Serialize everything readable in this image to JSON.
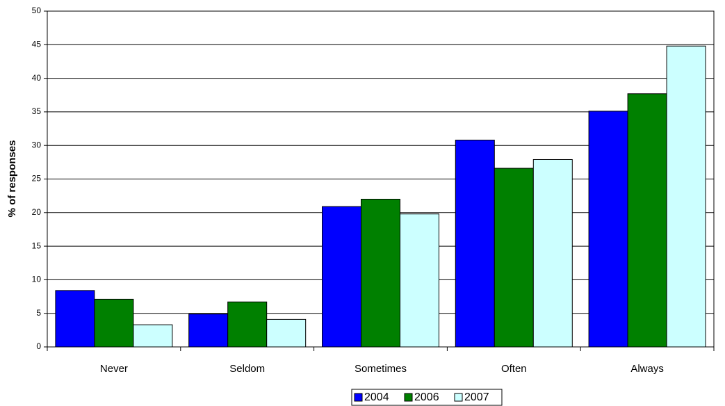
{
  "chart_data": {
    "type": "bar",
    "y_label": "% of responses",
    "categories": [
      "Never",
      "Seldom",
      "Sometimes",
      "Often",
      "Always"
    ],
    "series": [
      {
        "name": "2004",
        "color": "#0000ff",
        "values": [
          8.4,
          4.9,
          20.9,
          30.8,
          35.1
        ]
      },
      {
        "name": "2006",
        "color": "#008000",
        "values": [
          7.1,
          6.7,
          22.0,
          26.6,
          37.7
        ]
      },
      {
        "name": "2007",
        "color": "#ccffff",
        "values": [
          3.3,
          4.1,
          19.8,
          27.9,
          44.8
        ]
      }
    ],
    "ylim": [
      0,
      50
    ],
    "yticks": [
      0,
      5,
      10,
      15,
      20,
      25,
      30,
      35,
      40,
      45,
      50
    ],
    "grid": true,
    "legend": "bottom"
  }
}
